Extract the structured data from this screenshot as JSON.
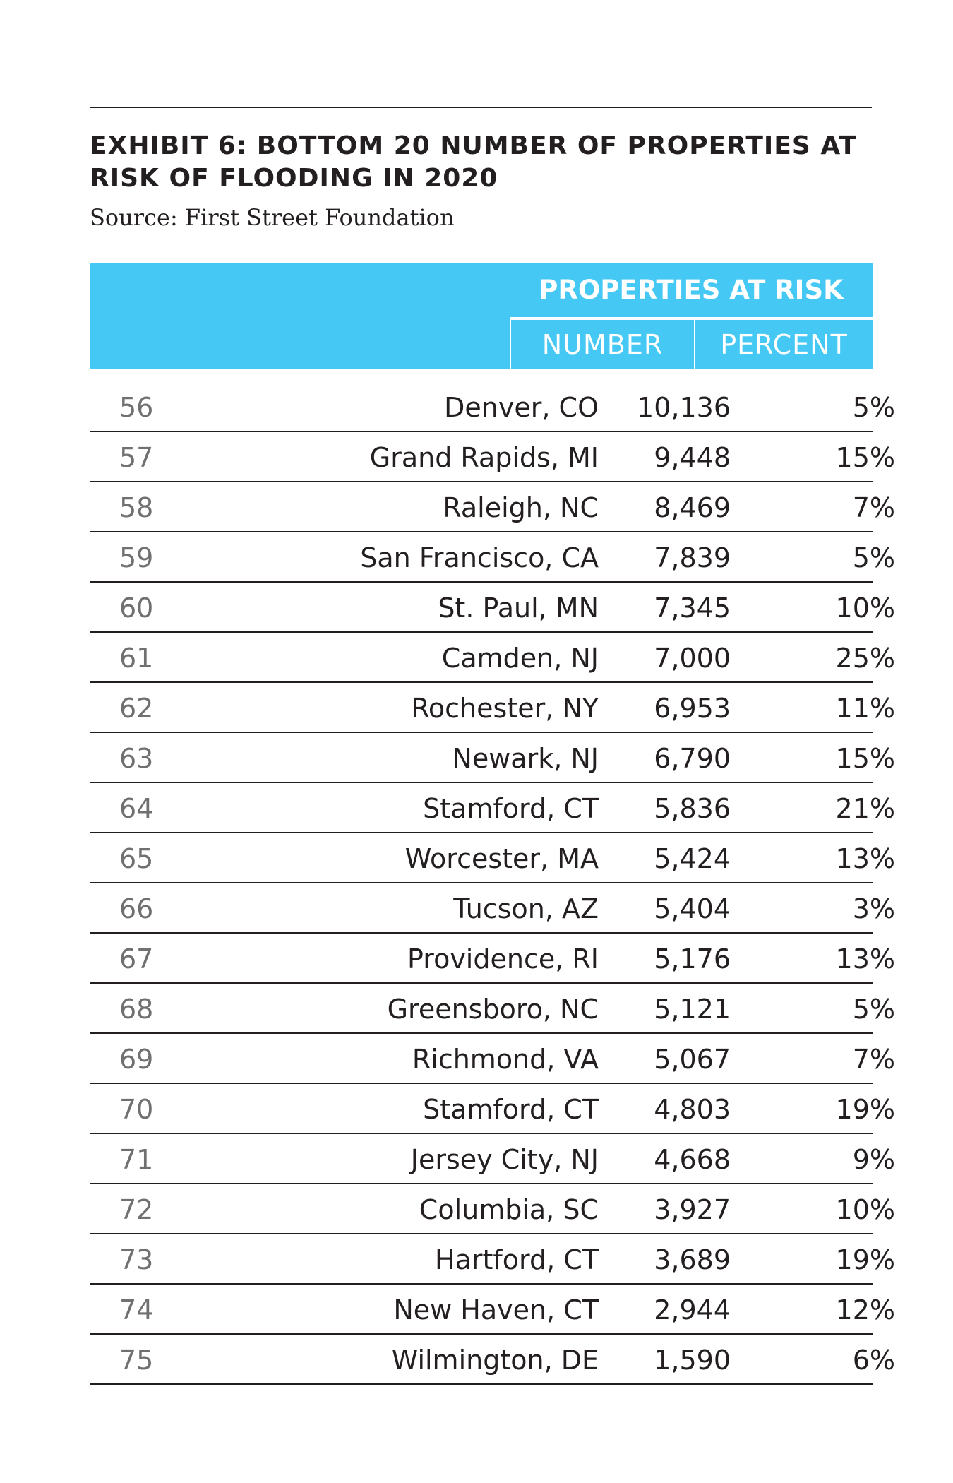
{
  "exhibit": {
    "title": "EXHIBIT 6: BOTTOM 20 NUMBER OF PROPERTIES AT RISK OF FLOODING IN 2020",
    "source": "Source: First Street Foundation"
  },
  "table": {
    "group_header": "PROPERTIES AT RISK",
    "columns": [
      "NUMBER",
      "PERCENT"
    ],
    "rows": [
      {
        "rank": "56",
        "city": "Denver, CO",
        "number": "10,136",
        "percent": "5%"
      },
      {
        "rank": "57",
        "city": "Grand Rapids, MI",
        "number": "9,448",
        "percent": "15%"
      },
      {
        "rank": "58",
        "city": "Raleigh, NC",
        "number": "8,469",
        "percent": "7%"
      },
      {
        "rank": "59",
        "city": "San Francisco, CA",
        "number": "7,839",
        "percent": "5%"
      },
      {
        "rank": "60",
        "city": "St. Paul, MN",
        "number": "7,345",
        "percent": "10%"
      },
      {
        "rank": "61",
        "city": "Camden, NJ",
        "number": "7,000",
        "percent": "25%"
      },
      {
        "rank": "62",
        "city": "Rochester, NY",
        "number": "6,953",
        "percent": "11%"
      },
      {
        "rank": "63",
        "city": "Newark, NJ",
        "number": "6,790",
        "percent": "15%"
      },
      {
        "rank": "64",
        "city": "Stamford, CT",
        "number": "5,836",
        "percent": "21%"
      },
      {
        "rank": "65",
        "city": "Worcester, MA",
        "number": "5,424",
        "percent": "13%"
      },
      {
        "rank": "66",
        "city": "Tucson, AZ",
        "number": "5,404",
        "percent": "3%"
      },
      {
        "rank": "67",
        "city": "Providence, RI",
        "number": "5,176",
        "percent": "13%"
      },
      {
        "rank": "68",
        "city": "Greensboro, NC",
        "number": "5,121",
        "percent": "5%"
      },
      {
        "rank": "69",
        "city": "Richmond, VA",
        "number": "5,067",
        "percent": "7%"
      },
      {
        "rank": "70",
        "city": "Stamford, CT",
        "number": "4,803",
        "percent": "19%"
      },
      {
        "rank": "71",
        "city": "Jersey City, NJ",
        "number": "4,668",
        "percent": "9%"
      },
      {
        "rank": "72",
        "city": "Columbia, SC",
        "number": "3,927",
        "percent": "10%"
      },
      {
        "rank": "73",
        "city": "Hartford, CT",
        "number": "3,689",
        "percent": "19%"
      },
      {
        "rank": "74",
        "city": "New Haven, CT",
        "number": "2,944",
        "percent": "12%"
      },
      {
        "rank": "75",
        "city": "Wilmington, DE",
        "number": "1,590",
        "percent": "6%"
      }
    ]
  },
  "colors": {
    "header_bg": "#45c8f4",
    "header_text": "#ffffff",
    "text": "#231f20",
    "rank_text": "#707070"
  }
}
